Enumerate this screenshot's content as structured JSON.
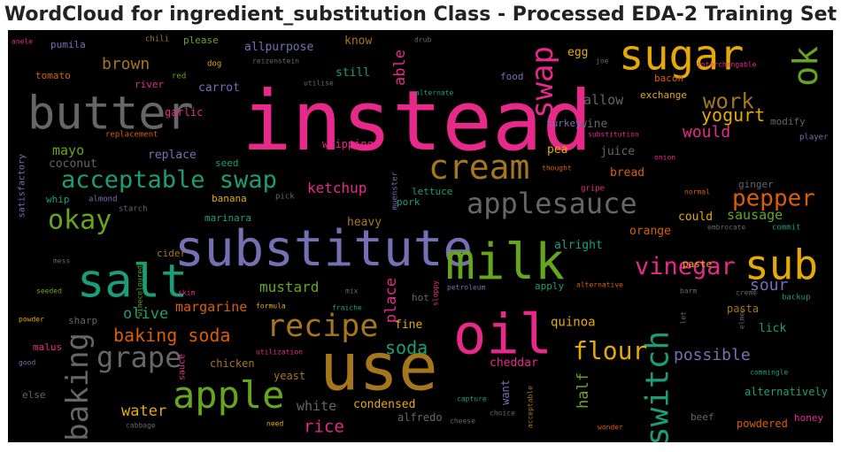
{
  "chart_data": {
    "type": "wordcloud",
    "title": "WordCloud for ingredient_substitution Class - Processed EDA-2 Training Set",
    "background": "#000000",
    "colormap": [
      "#e7298a",
      "#7570b3",
      "#66a61e",
      "#e6ab02",
      "#a6761d",
      "#d95f02",
      "#1b9e77",
      "#666666"
    ],
    "words": [
      {
        "text": "instead",
        "c": "#e7298a"
      },
      {
        "text": "substitute",
        "c": "#7570b3"
      },
      {
        "text": "use",
        "c": "#a6761d"
      },
      {
        "text": "milk",
        "c": "#66a61e"
      },
      {
        "text": "salt",
        "c": "#1b9e77"
      },
      {
        "text": "oil",
        "c": "#e7298a"
      },
      {
        "text": "butter",
        "c": "#666666"
      },
      {
        "text": "sugar",
        "c": "#e6ab02"
      },
      {
        "text": "sub",
        "c": "#e6ab02"
      },
      {
        "text": "apple",
        "c": "#66a61e"
      },
      {
        "text": "cream",
        "c": "#a6761d"
      },
      {
        "text": "applesauce",
        "c": "#666666"
      },
      {
        "text": "recipe",
        "c": "#a6761d"
      },
      {
        "text": "swap",
        "c": "#e7298a"
      },
      {
        "text": "switch",
        "c": "#1b9e77"
      },
      {
        "text": "ok",
        "c": "#66a61e"
      },
      {
        "text": "acceptable swap",
        "c": "#1b9e77"
      },
      {
        "text": "baking",
        "c": "#666666"
      },
      {
        "text": "grape",
        "c": "#666666"
      },
      {
        "text": "okay",
        "c": "#66a61e"
      },
      {
        "text": "flour",
        "c": "#e6ab02"
      },
      {
        "text": "vinegar",
        "c": "#e7298a"
      },
      {
        "text": "pepper",
        "c": "#d95f02"
      },
      {
        "text": "work",
        "c": "#a6761d"
      },
      {
        "text": "baking soda",
        "c": "#d95f02"
      },
      {
        "text": "yogurt",
        "c": "#e6ab02"
      },
      {
        "text": "brown",
        "c": "#a6761d"
      },
      {
        "text": "soda",
        "c": "#1b9e77"
      },
      {
        "text": "rice",
        "c": "#e7298a"
      },
      {
        "text": "water",
        "c": "#e6ab02"
      },
      {
        "text": "sour",
        "c": "#7570b3"
      },
      {
        "text": "possible",
        "c": "#7570b3"
      },
      {
        "text": "would",
        "c": "#e7298a"
      },
      {
        "text": "ketchup",
        "c": "#e7298a"
      },
      {
        "text": "mustard",
        "c": "#66a61e"
      },
      {
        "text": "olive",
        "c": "#1b9e77"
      },
      {
        "text": "margarine",
        "c": "#d95f02"
      },
      {
        "text": "mayo",
        "c": "#66a61e"
      },
      {
        "text": "white",
        "c": "#666666"
      },
      {
        "text": "allow",
        "c": "#666666"
      },
      {
        "text": "sausage",
        "c": "#66a61e"
      },
      {
        "text": "place",
        "c": "#e7298a"
      },
      {
        "text": "half",
        "c": "#66a61e"
      },
      {
        "text": "able",
        "c": "#e7298a"
      },
      {
        "text": "replace",
        "c": "#7570b3"
      },
      {
        "text": "coconut",
        "c": "#666666"
      },
      {
        "text": "condensed",
        "c": "#e6ab02"
      },
      {
        "text": "quinoa",
        "c": "#e6ab02"
      },
      {
        "text": "know",
        "c": "#a6761d"
      },
      {
        "text": "still",
        "c": "#1b9e77"
      },
      {
        "text": "carrot",
        "c": "#7570b3"
      },
      {
        "text": "allpurpose",
        "c": "#7570b3"
      },
      {
        "text": "bread",
        "c": "#d95f02"
      },
      {
        "text": "could",
        "c": "#e6ab02"
      },
      {
        "text": "orange",
        "c": "#d95f02"
      },
      {
        "text": "alright",
        "c": "#1b9e77"
      },
      {
        "text": "heavy",
        "c": "#a6761d"
      },
      {
        "text": "egg",
        "c": "#e6ab02"
      },
      {
        "text": "pea",
        "c": "#e6ab02"
      },
      {
        "text": "juice",
        "c": "#666666"
      },
      {
        "text": "wine",
        "c": "#666666"
      },
      {
        "text": "fine",
        "c": "#e6ab02"
      },
      {
        "text": "apply",
        "c": "#1b9e77"
      },
      {
        "text": "want",
        "c": "#7570b3"
      },
      {
        "text": "hot",
        "c": "#666666"
      },
      {
        "text": "cheddar",
        "c": "#e7298a"
      },
      {
        "text": "lick",
        "c": "#1b9e77"
      },
      {
        "text": "pasta",
        "c": "#a6761d"
      },
      {
        "text": "honey",
        "c": "#e7298a"
      },
      {
        "text": "powdered",
        "c": "#d95f02"
      },
      {
        "text": "alternatively",
        "c": "#1b9e77"
      },
      {
        "text": "beef",
        "c": "#666666"
      },
      {
        "text": "alfredo",
        "c": "#666666"
      },
      {
        "text": "yeast",
        "c": "#a6761d"
      },
      {
        "text": "chicken",
        "c": "#a6761d"
      },
      {
        "text": "sharp",
        "c": "#666666"
      },
      {
        "text": "malus",
        "c": "#e7298a"
      },
      {
        "text": "whipping",
        "c": "#e7298a"
      },
      {
        "text": "ginger",
        "c": "#666666"
      },
      {
        "text": "paste",
        "c": "#e6ab02"
      },
      {
        "text": "bacon",
        "c": "#d95f02"
      },
      {
        "text": "exchange",
        "c": "#e6ab02"
      },
      {
        "text": "modify",
        "c": "#666666"
      },
      {
        "text": "turkey",
        "c": "#7570b3"
      },
      {
        "text": "food",
        "c": "#7570b3"
      },
      {
        "text": "pumila",
        "c": "#7570b3"
      },
      {
        "text": "please",
        "c": "#66a61e"
      },
      {
        "text": "tomato",
        "c": "#d95f02"
      },
      {
        "text": "river",
        "c": "#e7298a"
      },
      {
        "text": "garlic",
        "c": "#e7298a"
      },
      {
        "text": "seed",
        "c": "#1b9e77"
      },
      {
        "text": "banana",
        "c": "#e6ab02"
      },
      {
        "text": "marinara",
        "c": "#1b9e77"
      },
      {
        "text": "cider",
        "c": "#a6761d"
      },
      {
        "text": "whip",
        "c": "#1b9e77"
      },
      {
        "text": "pork",
        "c": "#1b9e77"
      },
      {
        "text": "lettuce",
        "c": "#1b9e77"
      },
      {
        "text": "satisfactory",
        "c": "#7570b3"
      },
      {
        "text": "else",
        "c": "#666666"
      },
      {
        "text": "sauce",
        "c": "#e7298a"
      },
      {
        "text": "chili",
        "c": "#a6761d"
      },
      {
        "text": "dog",
        "c": "#e6ab02"
      },
      {
        "text": "red",
        "c": "#66a61e"
      },
      {
        "text": "replacement",
        "c": "#d95f02"
      },
      {
        "text": "almond",
        "c": "#7570b3"
      },
      {
        "text": "starch",
        "c": "#666666"
      },
      {
        "text": "pick",
        "c": "#666666"
      },
      {
        "text": "muenster",
        "c": "#7570b3"
      },
      {
        "text": "onion",
        "c": "#e7298a"
      },
      {
        "text": "player",
        "c": "#7570b3"
      },
      {
        "text": "gripe",
        "c": "#e7298a"
      },
      {
        "text": "normal",
        "c": "#d95f02"
      },
      {
        "text": "embrocate",
        "c": "#666666"
      },
      {
        "text": "commit",
        "c": "#1b9e77"
      },
      {
        "text": "backup",
        "c": "#1b9e77"
      },
      {
        "text": "creme",
        "c": "#666666"
      },
      {
        "text": "barm",
        "c": "#666666"
      },
      {
        "text": "elmer",
        "c": "#666666"
      },
      {
        "text": "commingle",
        "c": "#1b9e77"
      },
      {
        "text": "wonder",
        "c": "#d95f02"
      },
      {
        "text": "choice",
        "c": "#666666"
      },
      {
        "text": "cheese",
        "c": "#666666"
      },
      {
        "text": "capture",
        "c": "#1b9e77"
      },
      {
        "text": "acceptable",
        "c": "#a6761d"
      },
      {
        "text": "need",
        "c": "#e6ab02"
      },
      {
        "text": "cabbage",
        "c": "#666666"
      },
      {
        "text": "good",
        "c": "#7570b3"
      },
      {
        "text": "powder",
        "c": "#e6ab02"
      },
      {
        "text": "seeded",
        "c": "#66a61e"
      },
      {
        "text": "mess",
        "c": "#666666"
      },
      {
        "text": "winecoloured",
        "c": "#66a61e"
      },
      {
        "text": "skim",
        "c": "#e7298a"
      },
      {
        "text": "mix",
        "c": "#666666"
      },
      {
        "text": "formula",
        "c": "#e6ab02"
      },
      {
        "text": "fraiche",
        "c": "#1b9e77"
      },
      {
        "text": "sloppy",
        "c": "#e7298a"
      },
      {
        "text": "petroleum",
        "c": "#7570b3"
      },
      {
        "text": "alternative",
        "c": "#d95f02"
      },
      {
        "text": "let",
        "c": "#666666"
      },
      {
        "text": "utilization",
        "c": "#e7298a"
      },
      {
        "text": "reizenstein",
        "c": "#666666"
      },
      {
        "text": "utilise",
        "c": "#666666"
      },
      {
        "text": "alternate",
        "c": "#1b9e77"
      },
      {
        "text": "drub",
        "c": "#666666"
      },
      {
        "text": "joe",
        "c": "#666666"
      },
      {
        "text": "interchangable",
        "c": "#e7298a"
      },
      {
        "text": "anele",
        "c": "#e7298a"
      },
      {
        "text": "thought",
        "c": "#d95f02"
      },
      {
        "text": "substitution",
        "c": "#e7298a"
      }
    ]
  }
}
